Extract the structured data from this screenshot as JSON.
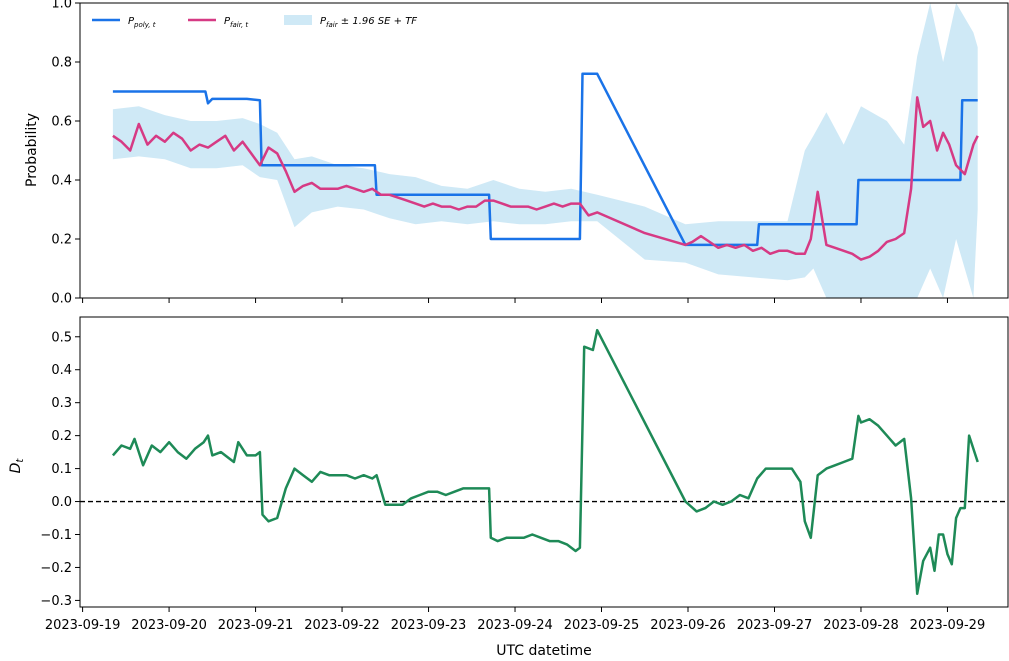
{
  "chart_data": [
    {
      "type": "line",
      "ylabel": "Probability",
      "ylim": [
        0.0,
        1.0
      ],
      "yticks": [
        "0.0",
        "0.2",
        "0.4",
        "0.6",
        "0.8",
        "1.0"
      ],
      "grid": false,
      "legend_position": "top-left",
      "colors": {
        "poly": "#1a73e8",
        "fair": "#d63a84",
        "band": "#cfe9f6"
      },
      "legend": [
        {
          "label": "P_poly,t",
          "display": "P",
          "sub": "poly, t",
          "tail": "",
          "kind": "line",
          "color": "#1a73e8"
        },
        {
          "label": "P_fair,t",
          "display": "P",
          "sub": "fair, t",
          "tail": "",
          "kind": "line",
          "color": "#d63a84"
        },
        {
          "label": "P_fair ± 1.96 SE + TF",
          "display": "P",
          "sub": "fair",
          "tail": " ± 1.96 SE + TF",
          "kind": "band",
          "color": "#cfe9f6"
        }
      ],
      "series": [
        {
          "name": "P_poly,t",
          "x": [
            19.35,
            20.42,
            20.45,
            20.5,
            20.9,
            21.05,
            21.07,
            21.5,
            22.38,
            22.4,
            23.7,
            23.72,
            24.75,
            24.78,
            24.95,
            25.97,
            26.8,
            26.82,
            27.95,
            27.97,
            29.15,
            29.17,
            29.35
          ],
          "y": [
            0.7,
            0.7,
            0.66,
            0.675,
            0.675,
            0.67,
            0.45,
            0.45,
            0.45,
            0.35,
            0.35,
            0.2,
            0.2,
            0.76,
            0.76,
            0.18,
            0.18,
            0.25,
            0.25,
            0.4,
            0.4,
            0.67,
            0.67
          ]
        },
        {
          "name": "P_fair,t",
          "x": [
            19.35,
            19.45,
            19.55,
            19.65,
            19.75,
            19.85,
            19.95,
            20.05,
            20.15,
            20.25,
            20.35,
            20.45,
            20.55,
            20.65,
            20.75,
            20.85,
            20.95,
            21.05,
            21.15,
            21.25,
            21.35,
            21.45,
            21.55,
            21.65,
            21.75,
            21.85,
            21.95,
            22.05,
            22.15,
            22.25,
            22.35,
            22.45,
            22.55,
            22.65,
            22.75,
            22.85,
            22.95,
            23.05,
            23.15,
            23.25,
            23.35,
            23.45,
            23.55,
            23.65,
            23.75,
            23.85,
            23.95,
            24.05,
            24.15,
            24.25,
            24.35,
            24.45,
            24.55,
            24.65,
            24.75,
            24.85,
            24.95,
            25.5,
            25.97,
            26.05,
            26.15,
            26.25,
            26.35,
            26.45,
            26.55,
            26.65,
            26.75,
            26.85,
            26.95,
            27.05,
            27.15,
            27.25,
            27.35,
            27.42,
            27.5,
            27.6,
            27.7,
            27.8,
            27.9,
            28.0,
            28.1,
            28.2,
            28.3,
            28.4,
            28.5,
            28.58,
            28.65,
            28.72,
            28.8,
            28.88,
            28.95,
            29.02,
            29.1,
            29.2,
            29.3,
            29.35
          ],
          "y": [
            0.55,
            0.53,
            0.5,
            0.59,
            0.52,
            0.55,
            0.53,
            0.56,
            0.54,
            0.5,
            0.52,
            0.51,
            0.53,
            0.55,
            0.5,
            0.53,
            0.49,
            0.45,
            0.51,
            0.49,
            0.43,
            0.36,
            0.38,
            0.39,
            0.37,
            0.37,
            0.37,
            0.38,
            0.37,
            0.36,
            0.37,
            0.35,
            0.35,
            0.34,
            0.33,
            0.32,
            0.31,
            0.32,
            0.31,
            0.31,
            0.3,
            0.31,
            0.31,
            0.33,
            0.33,
            0.32,
            0.31,
            0.31,
            0.31,
            0.3,
            0.31,
            0.32,
            0.31,
            0.32,
            0.32,
            0.28,
            0.29,
            0.22,
            0.18,
            0.19,
            0.21,
            0.19,
            0.17,
            0.18,
            0.17,
            0.18,
            0.16,
            0.17,
            0.15,
            0.16,
            0.16,
            0.15,
            0.15,
            0.2,
            0.36,
            0.18,
            0.17,
            0.16,
            0.15,
            0.13,
            0.14,
            0.16,
            0.19,
            0.2,
            0.22,
            0.37,
            0.68,
            0.58,
            0.6,
            0.5,
            0.56,
            0.52,
            0.45,
            0.42,
            0.52,
            0.55
          ]
        },
        {
          "name": "P_fair ± 1.96 SE + TF",
          "kind": "band",
          "x": [
            19.35,
            19.65,
            19.95,
            20.25,
            20.55,
            20.85,
            21.05,
            21.25,
            21.45,
            21.65,
            21.95,
            22.25,
            22.55,
            22.85,
            23.15,
            23.45,
            23.75,
            24.05,
            24.35,
            24.65,
            24.95,
            25.5,
            25.97,
            26.35,
            26.75,
            27.15,
            27.35,
            27.45,
            27.6,
            27.8,
            28.0,
            28.3,
            28.5,
            28.65,
            28.8,
            28.95,
            29.1,
            29.3,
            29.35
          ],
          "lower": [
            0.47,
            0.48,
            0.47,
            0.44,
            0.44,
            0.45,
            0.41,
            0.4,
            0.24,
            0.29,
            0.31,
            0.3,
            0.27,
            0.25,
            0.26,
            0.25,
            0.26,
            0.25,
            0.25,
            0.26,
            0.26,
            0.13,
            0.12,
            0.08,
            0.07,
            0.06,
            0.07,
            0.1,
            0.0,
            0.0,
            0.0,
            0.0,
            0.0,
            0.0,
            0.1,
            0.0,
            0.2,
            0.0,
            0.3
          ],
          "upper": [
            0.64,
            0.65,
            0.62,
            0.6,
            0.6,
            0.61,
            0.59,
            0.56,
            0.47,
            0.48,
            0.45,
            0.44,
            0.42,
            0.41,
            0.38,
            0.37,
            0.4,
            0.37,
            0.36,
            0.37,
            0.35,
            0.31,
            0.25,
            0.26,
            0.26,
            0.26,
            0.5,
            0.55,
            0.63,
            0.52,
            0.65,
            0.6,
            0.52,
            0.82,
            1.0,
            0.8,
            1.0,
            0.9,
            0.85
          ]
        }
      ]
    },
    {
      "type": "line",
      "xlabel": "UTC datetime",
      "ylabel": "D",
      "ylabel_sub": "t",
      "ylim": [
        -0.32,
        0.56
      ],
      "yticks": [
        "−0.3",
        "−0.2",
        "−0.1",
        "0.0",
        "0.1",
        "0.2",
        "0.3",
        "0.4",
        "0.5"
      ],
      "xlim": [
        18.97,
        29.7
      ],
      "xticks": [
        "2023-09-19",
        "2023-09-20",
        "2023-09-21",
        "2023-09-22",
        "2023-09-23",
        "2023-09-24",
        "2023-09-25",
        "2023-09-26",
        "2023-09-27",
        "2023-09-28",
        "2023-09-29"
      ],
      "grid": false,
      "reference_line": {
        "y": 0.0,
        "style": "dashed"
      },
      "colors": {
        "d": "#1e8a57"
      },
      "series": [
        {
          "name": "D_t",
          "x": [
            19.35,
            19.45,
            19.55,
            19.6,
            19.7,
            19.8,
            19.9,
            20.0,
            20.1,
            20.2,
            20.3,
            20.4,
            20.45,
            20.5,
            20.6,
            20.7,
            20.75,
            20.8,
            20.9,
            21.0,
            21.05,
            21.08,
            21.15,
            21.25,
            21.35,
            21.45,
            21.55,
            21.65,
            21.75,
            21.85,
            21.95,
            22.05,
            22.15,
            22.25,
            22.35,
            22.4,
            22.5,
            22.6,
            22.7,
            22.8,
            22.9,
            23.0,
            23.1,
            23.2,
            23.3,
            23.4,
            23.5,
            23.6,
            23.7,
            23.72,
            23.8,
            23.9,
            24.0,
            24.1,
            24.2,
            24.3,
            24.4,
            24.5,
            24.6,
            24.7,
            24.75,
            24.8,
            24.9,
            24.95,
            25.97,
            26.1,
            26.2,
            26.3,
            26.4,
            26.5,
            26.6,
            26.7,
            26.8,
            26.9,
            27.0,
            27.1,
            27.2,
            27.3,
            27.35,
            27.42,
            27.5,
            27.6,
            27.7,
            27.8,
            27.9,
            27.97,
            28.0,
            28.1,
            28.2,
            28.3,
            28.4,
            28.5,
            28.58,
            28.65,
            28.72,
            28.8,
            28.85,
            28.9,
            28.95,
            29.0,
            29.05,
            29.1,
            29.15,
            29.2,
            29.25,
            29.35
          ],
          "y": [
            0.14,
            0.17,
            0.16,
            0.19,
            0.11,
            0.17,
            0.15,
            0.18,
            0.15,
            0.13,
            0.16,
            0.18,
            0.2,
            0.14,
            0.15,
            0.13,
            0.12,
            0.18,
            0.14,
            0.14,
            0.15,
            -0.04,
            -0.06,
            -0.05,
            0.04,
            0.1,
            0.08,
            0.06,
            0.09,
            0.08,
            0.08,
            0.08,
            0.07,
            0.08,
            0.07,
            0.08,
            -0.01,
            -0.01,
            -0.01,
            0.01,
            0.02,
            0.03,
            0.03,
            0.02,
            0.03,
            0.04,
            0.04,
            0.04,
            0.04,
            -0.11,
            -0.12,
            -0.11,
            -0.11,
            -0.11,
            -0.1,
            -0.11,
            -0.12,
            -0.12,
            -0.13,
            -0.15,
            -0.14,
            0.47,
            0.46,
            0.52,
            0.0,
            -0.03,
            -0.02,
            0.0,
            -0.01,
            0.0,
            0.02,
            0.01,
            0.07,
            0.1,
            0.1,
            0.1,
            0.1,
            0.06,
            -0.06,
            -0.11,
            0.08,
            0.1,
            0.11,
            0.12,
            0.13,
            0.26,
            0.24,
            0.25,
            0.23,
            0.2,
            0.17,
            0.19,
            0.01,
            -0.28,
            -0.18,
            -0.14,
            -0.21,
            -0.1,
            -0.1,
            -0.16,
            -0.19,
            -0.05,
            -0.02,
            -0.02,
            0.2,
            0.12
          ]
        }
      ]
    }
  ]
}
